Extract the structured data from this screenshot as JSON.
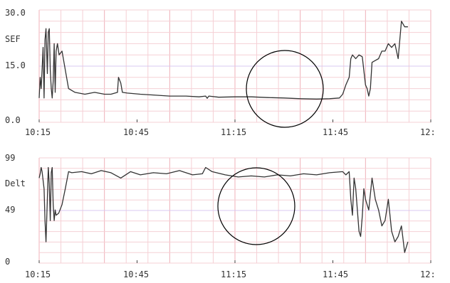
{
  "chart_data": [
    {
      "type": "line",
      "ylim": [
        0,
        30
      ],
      "yticks": [
        "30.0",
        "15.0",
        "0.0"
      ],
      "ylabel": "SEF",
      "xticks": [
        "10:15",
        "10:45",
        "11:15",
        "11:45",
        "12:"
      ],
      "xlim_minutes": [
        615,
        735
      ],
      "grid": true,
      "annotation": "circle",
      "series": [
        {
          "color": "#333333",
          "points": [
            [
              615,
              6.5
            ],
            [
              615.3,
              12
            ],
            [
              615.6,
              9
            ],
            [
              615.9,
              14
            ],
            [
              616.2,
              20
            ],
            [
              616.5,
              6.5
            ],
            [
              616.8,
              22
            ],
            [
              617.1,
              25
            ],
            [
              617.5,
              13
            ],
            [
              617.8,
              24
            ],
            [
              618.1,
              25
            ],
            [
              618.4,
              14
            ],
            [
              618.7,
              9
            ],
            [
              619,
              6.5
            ],
            [
              619.3,
              11
            ],
            [
              619.6,
              21
            ],
            [
              619.9,
              8
            ],
            [
              620.2,
              19
            ],
            [
              620.6,
              21
            ],
            [
              621.1,
              18
            ],
            [
              622,
              19
            ],
            [
              623,
              14
            ],
            [
              624,
              9
            ],
            [
              626,
              8
            ],
            [
              629,
              7.5
            ],
            [
              632,
              8
            ],
            [
              635,
              7.5
            ],
            [
              637,
              7.5
            ],
            [
              639,
              8
            ],
            [
              639.3,
              12
            ],
            [
              640,
              10.5
            ],
            [
              640.5,
              8
            ],
            [
              642,
              7.8
            ],
            [
              646,
              7.5
            ],
            [
              650,
              7.3
            ],
            [
              655,
              7.0
            ],
            [
              660,
              7.0
            ],
            [
              664,
              6.8
            ],
            [
              666,
              7.0
            ],
            [
              666.5,
              6.4
            ],
            [
              667,
              7.0
            ],
            [
              670,
              6.7
            ],
            [
              675,
              6.8
            ],
            [
              680,
              6.8
            ],
            [
              685,
              6.6
            ],
            [
              690,
              6.5
            ],
            [
              695,
              6.3
            ],
            [
              700,
              6.2
            ],
            [
              704,
              6.3
            ],
            [
              707,
              6.5
            ],
            [
              708,
              7.5
            ],
            [
              709,
              10
            ],
            [
              710,
              12
            ],
            [
              710.5,
              17
            ],
            [
              711,
              18
            ],
            [
              712,
              17
            ],
            [
              713,
              18
            ],
            [
              714,
              17.5
            ],
            [
              715,
              10
            ],
            [
              715.5,
              9
            ],
            [
              716,
              7
            ],
            [
              716.5,
              9
            ],
            [
              717,
              16
            ],
            [
              718,
              16.5
            ],
            [
              719,
              17
            ],
            [
              720,
              19
            ],
            [
              721,
              19
            ],
            [
              722,
              21
            ],
            [
              723,
              20
            ],
            [
              724,
              21
            ],
            [
              725,
              17
            ],
            [
              726,
              27
            ],
            [
              727,
              25.5
            ],
            [
              728,
              25.5
            ]
          ]
        }
      ]
    },
    {
      "type": "line",
      "ylim": [
        0,
        99
      ],
      "yticks": [
        "99",
        "49",
        "0"
      ],
      "ylabel": "Delt",
      "xticks": [
        "10:15",
        "10:45",
        "11:15",
        "11:45",
        "12:"
      ],
      "xlim_minutes": [
        615,
        735
      ],
      "grid": true,
      "annotation": "circle",
      "series": [
        {
          "color": "#333333",
          "points": [
            [
              615,
              80
            ],
            [
              615.3,
              84
            ],
            [
              615.6,
              90
            ],
            [
              615.9,
              86
            ],
            [
              616.2,
              78
            ],
            [
              616.5,
              70
            ],
            [
              616.8,
              40
            ],
            [
              617.1,
              20
            ],
            [
              617.5,
              60
            ],
            [
              617.8,
              90
            ],
            [
              618.1,
              75
            ],
            [
              618.4,
              40
            ],
            [
              618.7,
              85
            ],
            [
              619,
              90
            ],
            [
              619.3,
              55
            ],
            [
              619.6,
              40
            ],
            [
              619.9,
              50
            ],
            [
              620.2,
              45
            ],
            [
              621,
              47
            ],
            [
              622,
              55
            ],
            [
              623,
              70
            ],
            [
              624,
              86
            ],
            [
              625,
              85
            ],
            [
              628,
              86
            ],
            [
              631,
              84
            ],
            [
              634,
              87
            ],
            [
              637,
              85
            ],
            [
              640,
              80
            ],
            [
              643,
              86
            ],
            [
              646,
              83
            ],
            [
              650,
              85
            ],
            [
              654,
              84
            ],
            [
              658,
              87
            ],
            [
              662,
              83
            ],
            [
              665,
              84
            ],
            [
              666,
              90
            ],
            [
              668,
              86
            ],
            [
              672,
              83
            ],
            [
              676,
              81
            ],
            [
              680,
              82
            ],
            [
              684,
              81
            ],
            [
              688,
              83
            ],
            [
              692,
              82
            ],
            [
              696,
              84
            ],
            [
              700,
              83
            ],
            [
              704,
              85
            ],
            [
              708,
              86
            ],
            [
              709,
              83
            ],
            [
              710,
              86
            ],
            [
              710.5,
              60
            ],
            [
              711,
              45
            ],
            [
              711.5,
              80
            ],
            [
              712,
              70
            ],
            [
              712.5,
              50
            ],
            [
              713,
              30
            ],
            [
              713.5,
              25
            ],
            [
              714,
              44
            ],
            [
              714.5,
              70
            ],
            [
              715,
              60
            ],
            [
              716,
              50
            ],
            [
              717,
              80
            ],
            [
              718,
              60
            ],
            [
              719,
              50
            ],
            [
              720,
              35
            ],
            [
              721,
              40
            ],
            [
              722,
              60
            ],
            [
              723,
              30
            ],
            [
              724,
              20
            ],
            [
              725,
              25
            ],
            [
              726,
              35
            ],
            [
              727,
              10
            ],
            [
              728,
              20
            ]
          ]
        }
      ]
    }
  ]
}
